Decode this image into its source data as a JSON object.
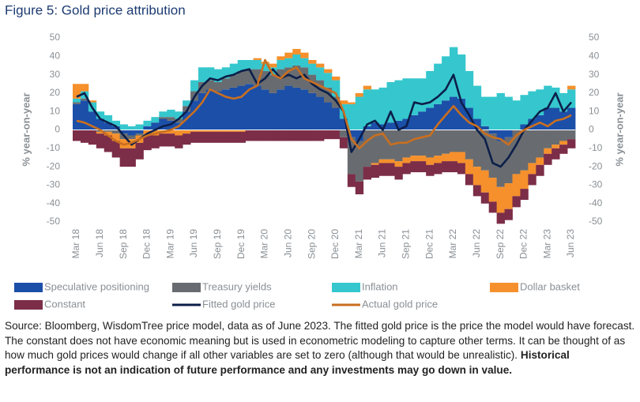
{
  "chart_data": {
    "type": "stacked_bar_line",
    "title": "Figure 5: Gold price attribution",
    "ylabel": "% year-on-year",
    "y2label": "% year-on-year",
    "categories": [
      "Mar 18",
      null,
      null,
      "Jun 18",
      null,
      null,
      "Sep 18",
      null,
      null,
      "Dec 18",
      null,
      null,
      "Mar 19",
      null,
      null,
      "Jun 19",
      null,
      null,
      "Sep 19",
      null,
      null,
      "Dec 19",
      null,
      null,
      "Mar 20",
      null,
      null,
      "Jun 20",
      null,
      null,
      "Sep 20",
      null,
      null,
      "Dec 20",
      null,
      null,
      "Mar 21",
      null,
      null,
      "Jun 21",
      null,
      null,
      "Sep 21",
      null,
      null,
      "Dec 21",
      null,
      null,
      "Mar 22",
      null,
      null,
      "Jun 22",
      null,
      null,
      "Sep 22",
      null,
      null,
      "Dec 22",
      null,
      null,
      "Mar 23",
      null,
      null,
      "Jun 23"
    ],
    "series": [
      {
        "name": "Speculative positioning",
        "type": "bar",
        "color": "#1c4fa8",
        "values": [
          14,
          16,
          10,
          6,
          4,
          2,
          -2,
          -3,
          -2,
          2,
          4,
          6,
          5,
          4,
          10,
          16,
          20,
          22,
          21,
          22,
          23,
          24,
          25,
          24,
          22,
          20,
          22,
          24,
          23,
          22,
          20,
          18,
          15,
          12,
          6,
          -4,
          -6,
          2,
          4,
          3,
          4,
          5,
          6,
          8,
          10,
          12,
          14,
          16,
          18,
          17,
          12,
          6,
          2,
          -2,
          -6,
          -4,
          0,
          3,
          6,
          8,
          12,
          12,
          10,
          12
        ]
      },
      {
        "name": "Treasury yields",
        "type": "bar",
        "color": "#686c70",
        "values": [
          1,
          1,
          0,
          -1,
          -1,
          -2,
          -3,
          -2,
          -1,
          0,
          0,
          1,
          2,
          2,
          3,
          5,
          6,
          5,
          5,
          6,
          7,
          8,
          8,
          9,
          10,
          10,
          11,
          10,
          12,
          12,
          10,
          9,
          8,
          6,
          -4,
          -20,
          -22,
          -20,
          -18,
          -16,
          -16,
          -17,
          -15,
          -14,
          -14,
          -15,
          -14,
          -13,
          -12,
          -12,
          -16,
          -20,
          -22,
          -24,
          -25,
          -25,
          -24,
          -22,
          -18,
          -15,
          -10,
          -8,
          -6,
          -5
        ]
      },
      {
        "name": "Inflation",
        "type": "bar",
        "color": "#35c7cd",
        "values": [
          2,
          4,
          5,
          4,
          4,
          3,
          3,
          2,
          3,
          3,
          3,
          3,
          4,
          4,
          3,
          6,
          8,
          7,
          7,
          6,
          6,
          6,
          5,
          5,
          4,
          4,
          5,
          5,
          6,
          5,
          6,
          7,
          8,
          9,
          8,
          14,
          18,
          20,
          18,
          20,
          22,
          22,
          22,
          20,
          18,
          20,
          22,
          24,
          27,
          24,
          20,
          18,
          16,
          18,
          20,
          18,
          16,
          16,
          15,
          14,
          12,
          11,
          10,
          10
        ]
      },
      {
        "name": "Dollar basket",
        "type": "bar",
        "color": "#f5902c",
        "values": [
          8,
          4,
          1,
          -1,
          -2,
          -4,
          -5,
          -5,
          -4,
          -3,
          -3,
          -2,
          -2,
          -3,
          -2,
          -1,
          -1,
          -1,
          -1,
          -1,
          -1,
          -1,
          0,
          1,
          1,
          2,
          2,
          3,
          3,
          3,
          2,
          2,
          2,
          2,
          2,
          1,
          2,
          2,
          -1,
          -2,
          -2,
          -3,
          -3,
          -3,
          -3,
          -4,
          -4,
          -4,
          -5,
          -6,
          -8,
          -10,
          -12,
          -13,
          -14,
          -14,
          -12,
          -10,
          -6,
          -4,
          -3,
          -2,
          -2,
          2
        ]
      },
      {
        "name": "Constant",
        "type": "bar",
        "color": "#7c2d48",
        "values": [
          -6,
          -7,
          -8,
          -8,
          -9,
          -9,
          -10,
          -10,
          -9,
          -8,
          -7,
          -7,
          -7,
          -7,
          -6,
          -6,
          -6,
          -6,
          -6,
          -6,
          -6,
          -6,
          -6,
          -6,
          -6,
          -6,
          -6,
          -6,
          -6,
          -6,
          -6,
          -6,
          -5,
          -5,
          -6,
          -7,
          -7,
          -7,
          -7,
          -7,
          -7,
          -7,
          -6,
          -6,
          -6,
          -6,
          -6,
          -6,
          -6,
          -6,
          -6,
          -6,
          -6,
          -6,
          -6,
          -6,
          -6,
          -6,
          -6,
          -6,
          -6,
          -6,
          -5,
          -5
        ]
      },
      {
        "name": "Fitted gold price",
        "type": "line",
        "color": "#0c1f4a",
        "values": [
          18,
          20,
          12,
          6,
          4,
          2,
          -3,
          -8,
          -5,
          -2,
          0,
          2,
          3,
          6,
          10,
          18,
          24,
          28,
          27,
          29,
          30,
          32,
          33,
          25,
          28,
          33,
          28,
          30,
          28,
          30,
          25,
          22,
          20,
          16,
          10,
          -12,
          -5,
          3,
          5,
          0,
          10,
          0,
          2,
          15,
          14,
          15,
          18,
          22,
          30,
          15,
          8,
          0,
          -5,
          -18,
          -20,
          -15,
          -8,
          0,
          5,
          10,
          12,
          20,
          10,
          15
        ]
      },
      {
        "name": "Actual gold price",
        "type": "line",
        "color": "#c96f20",
        "values": [
          5,
          4,
          2,
          0,
          -3,
          -6,
          -8,
          -7,
          -5,
          -3,
          -2,
          -1,
          0,
          2,
          6,
          10,
          15,
          22,
          20,
          18,
          17,
          18,
          22,
          24,
          38,
          30,
          28,
          32,
          34,
          28,
          26,
          24,
          22,
          20,
          10,
          -5,
          -10,
          -6,
          -3,
          -2,
          -8,
          -7,
          -7,
          -5,
          -4,
          -3,
          3,
          8,
          13,
          8,
          4,
          2,
          -2,
          -4,
          -5,
          -8,
          -3,
          0,
          2,
          4,
          2,
          5,
          6,
          8
        ]
      }
    ],
    "ylim": [
      -50,
      50
    ],
    "yticks": [
      50,
      40,
      30,
      20,
      10,
      0,
      -10,
      -20,
      -30,
      -40,
      -50
    ],
    "y2lim": [
      -50,
      50
    ],
    "y2ticks": [
      50,
      40,
      30,
      20,
      10,
      0,
      -10,
      -20,
      -30,
      -40,
      -50
    ],
    "source": {
      "text": "Source: Bloomberg, WisdomTree price model, data as of June 2023. The fitted gold price is the price the model would have forecast. The constant does not have economic meaning but is used in econometric modeling to capture other terms. It can be thought of as how much gold prices would change if all other variables are set to zero (although that would be unrealistic).",
      "bold": "Historical performance is not an indication of future performance and any investments may go down in value."
    }
  }
}
